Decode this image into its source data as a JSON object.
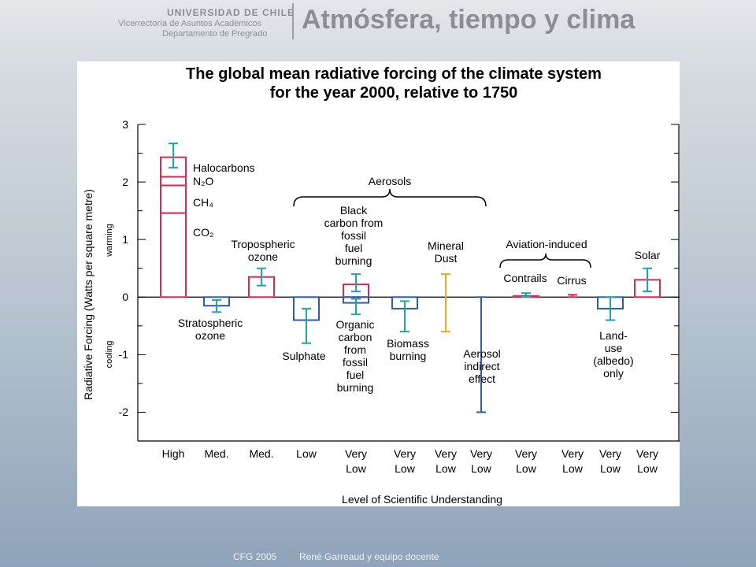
{
  "header": {
    "institution": "UNIVERSIDAD DE CHILE",
    "office": "Vicerrectoría de Asuntos Académicos",
    "department": "Departamento de Pregrado",
    "course": "Atmósfera, tiempo y clima"
  },
  "footer": {
    "code": "CFG 2005",
    "authors": "René Garreaud y equipo docente"
  },
  "chart_data": {
    "type": "forcing-bar",
    "title": [
      "The global mean radiative forcing of the climate system",
      "for the year 2000, relative to 1750"
    ],
    "y_label": "Radiative Forcing  (Watts per square metre)",
    "warming_label": "warming",
    "cooling_label": "cooling",
    "x_label": "Level  of Scientific Understanding",
    "ylim": [
      -2.5,
      3
    ],
    "yticks": [
      -2,
      -1,
      0,
      1,
      2,
      3
    ],
    "yticks_minor": [
      -2.5,
      -1.5,
      -0.5,
      0.5,
      1.5,
      2.5
    ],
    "groups": [
      "Aerosols",
      "Aviation-induced"
    ],
    "columns": [
      {
        "level": "High",
        "stack": [
          {
            "name": "CO₂",
            "value": 1.46
          },
          {
            "name": "CH₄",
            "value": 0.48
          },
          {
            "name": "N₂O",
            "value": 0.15
          },
          {
            "name": "Halocarbons",
            "value": 0.34
          }
        ],
        "color": "#d42a55",
        "range": [
          2.25,
          2.67
        ],
        "range_color": "#1fa6a6"
      },
      {
        "level": "Med.",
        "forcings": [
          {
            "name": "Stratospheric\nozone",
            "value": -0.15,
            "range": [
              -0.26,
              -0.05
            ],
            "color": "#2a5ea8",
            "range_color": "#1fa6a6"
          }
        ]
      },
      {
        "level": "Med.",
        "forcings": [
          {
            "name": "Tropospheric\nozone",
            "value": 0.35,
            "range": [
              0.2,
              0.5
            ],
            "color": "#d42a55",
            "range_color": "#1fa6a6"
          }
        ]
      },
      {
        "level": "Low",
        "forcings": [
          {
            "name": "Sulphate",
            "value": -0.4,
            "range": [
              -0.8,
              -0.2
            ],
            "color": "#2a5ea8",
            "range_color": "#1fa6a6"
          }
        ]
      },
      {
        "level": "Very\nLow",
        "forcings": [
          {
            "name": "Black\ncarbon from\nfossil\nfuel\nburning",
            "value": 0.22,
            "range": [
              0.1,
              0.4
            ],
            "color": "#d42a55",
            "range_color": "#1fa6a6"
          },
          {
            "name": "Organic\ncarbon\nfrom\nfossil\nfuel\nburning",
            "value": -0.1,
            "range": [
              -0.3,
              -0.03
            ],
            "color": "#2a5ea8",
            "range_color": "#1fa6a6"
          }
        ]
      },
      {
        "level": "Very\nLow",
        "forcings": [
          {
            "name": "Biomass\nburning",
            "value": -0.2,
            "range": [
              -0.6,
              -0.07
            ],
            "color": "#2a5ea8",
            "range_color": "#1fa6a6"
          }
        ]
      },
      {
        "level": "Very\nLow",
        "forcings": [
          {
            "name": "Mineral\nDust",
            "value": null,
            "range": [
              -0.6,
              0.4
            ],
            "color": "#f0a820",
            "range_color": "#f0a820"
          }
        ]
      },
      {
        "level": "Very\nLow",
        "forcings": [
          {
            "name": "Aerosol\nindirect\neffect",
            "value": null,
            "range": [
              -2,
              0
            ],
            "color": "#2a5ea8",
            "range_color": "#2a5ea8"
          }
        ]
      },
      {
        "level": "Very\nLow",
        "forcings": [
          {
            "name": "Contrails",
            "value": 0.02,
            "range": [
              0.005,
              0.07
            ],
            "color": "#d42a55",
            "range_color": "#1fa6a6"
          }
        ]
      },
      {
        "level": "Very\nLow",
        "forcings": [
          {
            "name": "Cirrus",
            "value": null,
            "range": [
              0,
              0.04
            ],
            "color": "#d42a55",
            "range_color": "#d42a55"
          }
        ]
      },
      {
        "level": "Very\nLow",
        "forcings": [
          {
            "name": "Land-\nuse\n(albedo)\nonly",
            "value": -0.2,
            "range": [
              -0.4,
              0
            ],
            "color": "#2a5ea8",
            "range_color": "#1fa6a6"
          }
        ]
      },
      {
        "level": "Very\nLow",
        "forcings": [
          {
            "name": "Solar",
            "value": 0.3,
            "range": [
              0.1,
              0.5
            ],
            "color": "#d42a55",
            "range_color": "#1fa6a6"
          }
        ]
      }
    ]
  }
}
